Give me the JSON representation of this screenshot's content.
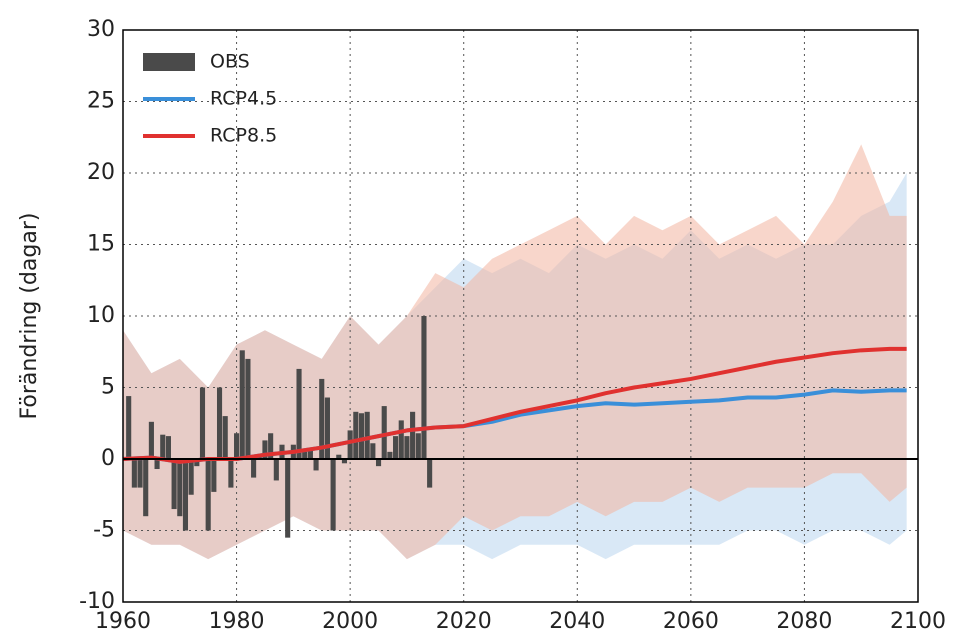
{
  "chart_data": {
    "type": "line",
    "ylabel": "Förändring (dagar)",
    "xlim": [
      1960,
      2100
    ],
    "xticks": [
      1960,
      1980,
      2000,
      2020,
      2040,
      2060,
      2080,
      2100
    ],
    "ylim": [
      -10,
      30
    ],
    "yticks": [
      -10,
      -5,
      0,
      5,
      10,
      15,
      20,
      25,
      30
    ],
    "grid": true,
    "hline": 0,
    "legend": "upper left",
    "series": [
      {
        "name": "OBS",
        "type": "bar",
        "color": "#4a4a4a",
        "x": [
          1961,
          1962,
          1963,
          1964,
          1965,
          1966,
          1967,
          1968,
          1969,
          1970,
          1971,
          1972,
          1973,
          1974,
          1975,
          1976,
          1977,
          1978,
          1979,
          1980,
          1981,
          1982,
          1983,
          1984,
          1985,
          1986,
          1987,
          1988,
          1989,
          1990,
          1991,
          1992,
          1993,
          1994,
          1995,
          1996,
          1997,
          1998,
          1999,
          2000,
          2001,
          2002,
          2003,
          2004,
          2005,
          2006,
          2007,
          2008,
          2009,
          2010,
          2011,
          2012,
          2013,
          2014
        ],
        "values": [
          4.4,
          -2,
          -2,
          -4,
          2.6,
          -0.7,
          1.7,
          1.6,
          -3.5,
          -4,
          -5,
          -2.5,
          -0.5,
          5,
          -5,
          -2.3,
          5,
          3,
          -2,
          1.8,
          7.6,
          7,
          -1.3,
          0.3,
          1.3,
          1.8,
          -1.5,
          1,
          -5.5,
          1,
          6.3,
          0.5,
          0.6,
          -0.8,
          5.6,
          4.3,
          -5,
          0.3,
          -0.3,
          2,
          3.3,
          3.2,
          3.3,
          1.1,
          -0.5,
          3.7,
          0.5,
          1.6,
          2.7,
          1.6,
          3.3,
          1.8,
          10,
          -2
        ]
      },
      {
        "name": "RCP4.5",
        "color": "#3a8fd9",
        "band_color": "#b9d6ef",
        "x": [
          1960,
          1965,
          1970,
          1975,
          1980,
          1985,
          1990,
          1995,
          2000,
          2005,
          2010,
          2015,
          2020,
          2025,
          2030,
          2035,
          2040,
          2045,
          2050,
          2055,
          2060,
          2065,
          2070,
          2075,
          2080,
          2085,
          2090,
          2095,
          2098
        ],
        "values": [
          0,
          0.1,
          -0.2,
          0,
          0,
          0.3,
          0.5,
          0.8,
          1.2,
          1.6,
          2.0,
          2.2,
          2.3,
          2.6,
          3.1,
          3.4,
          3.7,
          3.9,
          3.8,
          3.9,
          4.0,
          4.1,
          4.3,
          4.3,
          4.5,
          4.8,
          4.7,
          4.8,
          4.8
        ],
        "upper": [
          9,
          6,
          7,
          5,
          8,
          9,
          8,
          7,
          10,
          8,
          10,
          12,
          14,
          13,
          14,
          13,
          15,
          14,
          15,
          14,
          16,
          14,
          15,
          14,
          15,
          15,
          17,
          18,
          20
        ],
        "lower": [
          -5,
          -6,
          -6,
          -7,
          -6,
          -5,
          -4,
          -5,
          -5,
          -5,
          -7,
          -6,
          -6,
          -7,
          -6,
          -6,
          -6,
          -7,
          -6,
          -6,
          -6,
          -6,
          -5,
          -5,
          -6,
          -5,
          -5,
          -6,
          -5
        ]
      },
      {
        "name": "RCP8.5",
        "color": "#e0312f",
        "band_color": "#f2b5a0",
        "x": [
          1960,
          1965,
          1970,
          1975,
          1980,
          1985,
          1990,
          1995,
          2000,
          2005,
          2010,
          2015,
          2020,
          2025,
          2030,
          2035,
          2040,
          2045,
          2050,
          2055,
          2060,
          2065,
          2070,
          2075,
          2080,
          2085,
          2090,
          2095,
          2098
        ],
        "values": [
          0,
          0.1,
          -0.2,
          0,
          0,
          0.3,
          0.5,
          0.8,
          1.2,
          1.6,
          2.0,
          2.2,
          2.3,
          2.8,
          3.3,
          3.7,
          4.1,
          4.6,
          5.0,
          5.3,
          5.6,
          6.0,
          6.4,
          6.8,
          7.1,
          7.4,
          7.6,
          7.7,
          7.7
        ],
        "upper": [
          9,
          6,
          7,
          5,
          8,
          9,
          8,
          7,
          10,
          8,
          10,
          13,
          12,
          14,
          15,
          16,
          17,
          15,
          17,
          16,
          17,
          15,
          16,
          17,
          15,
          18,
          22,
          17,
          17
        ],
        "lower": [
          -5,
          -6,
          -6,
          -7,
          -6,
          -5,
          -4,
          -5,
          -5,
          -5,
          -7,
          -6,
          -4,
          -5,
          -4,
          -4,
          -3,
          -4,
          -3,
          -3,
          -2,
          -3,
          -2,
          -2,
          -2,
          -1,
          -1,
          -3,
          -2
        ]
      }
    ]
  }
}
